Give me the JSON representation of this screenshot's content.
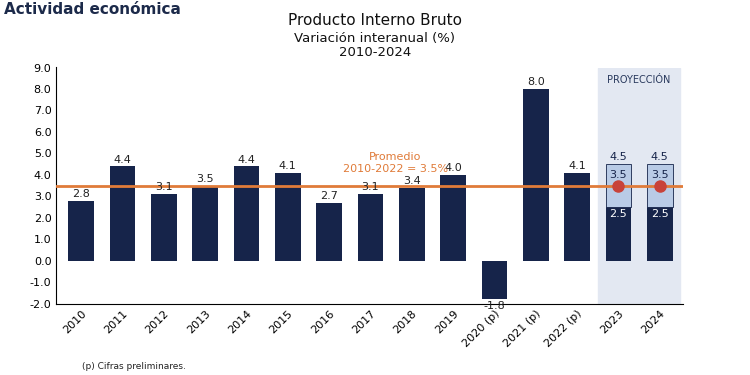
{
  "header": "Actividad económica",
  "footnote": "(p) Cifras preliminares.",
  "chart_data": {
    "type": "bar",
    "title": "Producto Interno Bruto",
    "subtitle": "Variación interanual (%)\n2010-2024",
    "categories": [
      "2010",
      "2011",
      "2012",
      "2013",
      "2014",
      "2015",
      "2016",
      "2017",
      "2018",
      "2019",
      "2020 (p)",
      "2021 (p)",
      "2022 (p)",
      "2023",
      "2024"
    ],
    "values": [
      2.8,
      4.4,
      3.1,
      3.5,
      4.4,
      4.1,
      2.7,
      3.1,
      3.4,
      4.0,
      -1.8,
      8.0,
      4.1,
      2.5,
      2.5
    ],
    "color": "#16244a",
    "data_labels": true,
    "ylim": [
      -2.0,
      9.0
    ],
    "yticks": [
      -2.0,
      -1.0,
      0.0,
      1.0,
      2.0,
      3.0,
      4.0,
      5.0,
      6.0,
      7.0,
      8.0,
      9.0
    ],
    "grid": false,
    "reference_line": {
      "value": 3.5,
      "label": "Promedio\n2010-2022 = 3.5%",
      "color": "#e07b39"
    },
    "projection": {
      "label": "PROYECCIÓN",
      "from": "2023",
      "high": [
        null,
        null,
        null,
        null,
        null,
        null,
        null,
        null,
        null,
        null,
        null,
        null,
        null,
        4.5,
        4.5
      ],
      "central": [
        null,
        null,
        null,
        null,
        null,
        null,
        null,
        null,
        null,
        null,
        null,
        null,
        null,
        3.5,
        3.5
      ],
      "color": "#b9cbe6",
      "marker": "o"
    }
  }
}
